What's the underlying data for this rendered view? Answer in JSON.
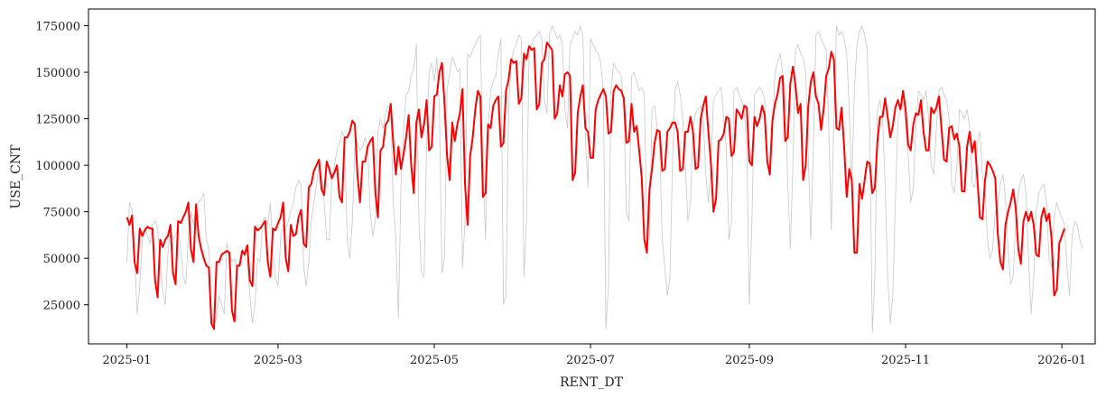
{
  "chart_data": {
    "type": "line",
    "xlabel": "RENT_DT",
    "ylabel": "USE_CNT",
    "xlim": [
      "2024-12-17",
      "2026-01-14"
    ],
    "ylim": [
      4000,
      184000
    ],
    "grid": false,
    "legend": "none",
    "x_ticks": [
      "2025-01",
      "2025-03",
      "2025-05",
      "2025-07",
      "2025-09",
      "2025-11",
      "2026-01"
    ],
    "y_ticks": [
      25000,
      50000,
      75000,
      100000,
      125000,
      150000,
      175000
    ],
    "y_tick_labels": [
      "25000",
      "50000",
      "75000",
      "100000",
      "125000",
      "150000",
      "175000"
    ],
    "series": [
      {
        "role": "daily",
        "color": "#c8c8c8",
        "x_start": "2025-01-01",
        "x_step_days": 1,
        "values": [
          48000,
          80000,
          76000,
          52000,
          20000,
          35000,
          60000,
          67000,
          62000,
          58000,
          68000,
          70000,
          66000,
          48000,
          32000,
          25000,
          52000,
          65000,
          60000,
          62000,
          68000,
          55000,
          40000,
          36000,
          62000,
          75000,
          68000,
          78000,
          80000,
          82000,
          85000,
          60000,
          55000,
          18000,
          15000,
          17000,
          30000,
          25000,
          20000,
          58000,
          52000,
          48000,
          50000,
          45000,
          48000,
          55000,
          50000,
          48000,
          30000,
          15000,
          25000,
          50000,
          48000,
          70000,
          72000,
          68000,
          80000,
          55000,
          40000,
          35000,
          60000,
          68000,
          65000,
          70000,
          75000,
          80000,
          88000,
          92000,
          90000,
          45000,
          35000,
          48000,
          70000,
          80000,
          90000,
          100000,
          95000,
          80000,
          60000,
          60000,
          92000,
          100000,
          108000,
          112000,
          118000,
          115000,
          60000,
          50000,
          70000,
          110000,
          112000,
          108000,
          110000,
          115000,
          110000,
          75000,
          62000,
          70000,
          118000,
          125000,
          120000,
          128000,
          132000,
          130000,
          80000,
          60000,
          18000,
          90000,
          118000,
          138000,
          140000,
          148000,
          152000,
          165000,
          70000,
          42000,
          40000,
          110000,
          150000,
          155000,
          145000,
          158000,
          130000,
          42000,
          50000,
          140000,
          150000,
          158000,
          155000,
          150000,
          152000,
          45000,
          70000,
          160000,
          158000,
          162000,
          165000,
          168000,
          170000,
          100000,
          60000,
          120000,
          140000,
          145000,
          148000,
          160000,
          168000,
          25000,
          30000,
          130000,
          155000,
          162000,
          165000,
          170000,
          168000,
          40000,
          70000,
          160000,
          165000,
          168000,
          170000,
          172000,
          168000,
          135000,
          128000,
          170000,
          175000,
          172000,
          168000,
          170000,
          165000,
          130000,
          120000,
          165000,
          168000,
          172000,
          170000,
          175000,
          170000,
          115000,
          88000,
          168000,
          165000,
          162000,
          160000,
          155000,
          140000,
          12000,
          35000,
          140000,
          155000,
          152000,
          150000,
          148000,
          130000,
          75000,
          70000,
          148000,
          150000,
          145000,
          140000,
          142000,
          138000,
          62000,
          60000,
          130000,
          132000,
          120000,
          110000,
          60000,
          45000,
          30000,
          40000,
          100000,
          140000,
          145000,
          138000,
          125000,
          100000,
          70000,
          80000,
          120000,
          128000,
          130000,
          132000,
          125000,
          95000,
          80000,
          100000,
          135000,
          138000,
          140000,
          142000,
          125000,
          110000,
          60000,
          70000,
          140000,
          142000,
          138000,
          135000,
          130000,
          110000,
          25000,
          70000,
          138000,
          140000,
          142000,
          140000,
          135000,
          100000,
          95000,
          115000,
          150000,
          155000,
          160000,
          150000,
          140000,
          90000,
          55000,
          100000,
          162000,
          165000,
          160000,
          158000,
          150000,
          105000,
          60000,
          110000,
          170000,
          172000,
          168000,
          165000,
          162000,
          120000,
          65000,
          125000,
          175000,
          170000,
          172000,
          168000,
          160000,
          130000,
          90000,
          140000,
          165000,
          172000,
          175000,
          170000,
          162000,
          120000,
          10000,
          40000,
          130000,
          135000,
          125000,
          90000,
          40000,
          15000,
          30000,
          80000,
          125000,
          130000,
          135000,
          120000,
          105000,
          80000,
          88000,
          120000,
          140000,
          138000,
          135000,
          140000,
          125000,
          100000,
          95000,
          120000,
          140000,
          142000,
          138000,
          135000,
          125000,
          90000,
          85000,
          100000,
          130000,
          128000,
          125000,
          130000,
          120000,
          90000,
          88000,
          112000,
          118000,
          95000,
          85000,
          60000,
          50000,
          55000,
          75000,
          80000,
          90000,
          95000,
          82000,
          55000,
          36000,
          40000,
          70000,
          85000,
          92000,
          95000,
          85000,
          50000,
          20000,
          40000,
          75000,
          85000,
          88000,
          90000,
          80000,
          50000,
          45000,
          72000,
          80000,
          75000,
          72000,
          68000,
          45000,
          30000,
          62000,
          70000,
          68000,
          60000,
          55000
        ]
      },
      {
        "role": "smoothed",
        "color": "#ff0000",
        "x_start": "2025-01-01",
        "x_step_days": 1,
        "values": [
          72000,
          68000,
          73000,
          48000,
          42000,
          66000,
          62000,
          65000,
          67000,
          66000,
          66000,
          38000,
          29000,
          60000,
          56000,
          60000,
          62000,
          68000,
          42000,
          36000,
          70000,
          69000,
          72000,
          75000,
          80000,
          55000,
          48000,
          79000,
          62000,
          55000,
          50000,
          46000,
          45000,
          15000,
          12000,
          48000,
          48000,
          52000,
          53000,
          54000,
          53000,
          22000,
          16000,
          46000,
          46000,
          54000,
          52000,
          57000,
          38000,
          35000,
          67000,
          65000,
          66000,
          68000,
          70000,
          48000,
          40000,
          66000,
          65000,
          69000,
          72000,
          80000,
          50000,
          43000,
          68000,
          62000,
          63000,
          72000,
          76000,
          58000,
          56000,
          88000,
          90000,
          97000,
          100000,
          103000,
          87000,
          84000,
          102000,
          98000,
          93000,
          96000,
          100000,
          83000,
          80000,
          115000,
          115000,
          118000,
          124000,
          122000,
          95000,
          80000,
          102000,
          102000,
          110000,
          113000,
          115000,
          85000,
          72000,
          108000,
          110000,
          122000,
          124000,
          133000,
          112000,
          95000,
          110000,
          98000,
          106000,
          115000,
          127000,
          100000,
          85000,
          123000,
          130000,
          115000,
          122000,
          135000,
          108000,
          110000,
          137000,
          138000,
          150000,
          155000,
          133000,
          105000,
          92000,
          123000,
          113000,
          122000,
          128000,
          141000,
          90000,
          68000,
          105000,
          115000,
          130000,
          140000,
          137000,
          83000,
          85000,
          122000,
          120000,
          132000,
          135000,
          137000,
          110000,
          112000,
          140000,
          146000,
          157000,
          155000,
          156000,
          133000,
          136000,
          160000,
          157000,
          164000,
          162000,
          163000,
          130000,
          133000,
          155000,
          157000,
          166000,
          164000,
          162000,
          125000,
          128000,
          143000,
          137000,
          149000,
          150000,
          148000,
          92000,
          96000,
          128000,
          137000,
          143000,
          120000,
          118000,
          104000,
          104000,
          130000,
          135000,
          138000,
          141000,
          137000,
          117000,
          118000,
          140000,
          143000,
          141000,
          140000,
          136000,
          112000,
          113000,
          133000,
          118000,
          121000,
          108000,
          93000,
          60000,
          53000,
          87000,
          98000,
          112000,
          119000,
          118000,
          97000,
          98000,
          118000,
          120000,
          123000,
          123000,
          118000,
          97000,
          98000,
          118000,
          118000,
          126000,
          118000,
          98000,
          99000,
          125000,
          132000,
          137000,
          118000,
          101000,
          75000,
          82000,
          113000,
          114000,
          117000,
          126000,
          125000,
          105000,
          107000,
          130000,
          128000,
          125000,
          132000,
          131000,
          102000,
          100000,
          126000,
          121000,
          125000,
          132000,
          127000,
          102000,
          95000,
          124000,
          133000,
          138000,
          147000,
          148000,
          113000,
          115000,
          144000,
          153000,
          143000,
          128000,
          133000,
          92000,
          100000,
          132000,
          145000,
          150000,
          137000,
          133000,
          119000,
          130000,
          148000,
          152000,
          161000,
          157000,
          120000,
          119000,
          131000,
          110000,
          83000,
          98000,
          92000,
          53000,
          53000,
          90000,
          82000,
          92000,
          102000,
          101000,
          85000,
          88000,
          113000,
          126000,
          126000,
          136000,
          126000,
          115000,
          121000,
          131000,
          135000,
          130000,
          140000,
          130000,
          111000,
          108000,
          122000,
          128000,
          127000,
          135000,
          118000,
          108000,
          108000,
          131000,
          128000,
          131000,
          137000,
          120000,
          103000,
          102000,
          120000,
          121000,
          114000,
          117000,
          110000,
          86000,
          86000,
          110000,
          118000,
          107000,
          113000,
          93000,
          72000,
          71000,
          92000,
          102000,
          100000,
          97000,
          93000,
          63000,
          48000,
          44000,
          68000,
          75000,
          80000,
          87000,
          77000,
          55000,
          47000,
          70000,
          75000,
          70000,
          75000,
          68000,
          52000,
          51000,
          72000,
          77000,
          70000,
          74000,
          60000,
          30000,
          33000,
          58000,
          62000,
          66000
        ]
      }
    ]
  }
}
